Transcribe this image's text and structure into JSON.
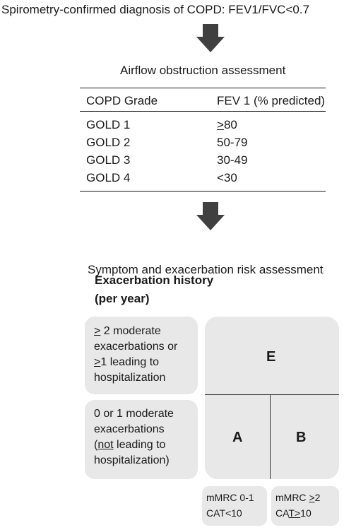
{
  "header": {
    "diagnosis": "Spirometry-confirmed diagnosis of COPD: FEV1/FVC<0.7"
  },
  "airflow": {
    "title": "Airflow obstruction assessment",
    "col_grade": "COPD Grade",
    "col_fev": "FEV 1 (% predicted)",
    "rows": [
      {
        "grade": "GOLD 1",
        "fev_prefix": ">",
        "fev": "80"
      },
      {
        "grade": "GOLD 2",
        "fev_prefix": "",
        "fev": "50-79"
      },
      {
        "grade": "GOLD 3",
        "fev_prefix": "",
        "fev": "30-49"
      },
      {
        "grade": "GOLD 4",
        "fev_prefix": "",
        "fev": "<30"
      }
    ]
  },
  "risk": {
    "title": "Symptom and exacerbation risk assessment",
    "history_title_1": "Exacerbation history",
    "history_title_2": "(per year)",
    "high": {
      "line1_prefix": ">",
      "line1_rest": " 2 moderate",
      "line2": "exacerbations or",
      "line3_prefix": ">",
      "line3_rest": "1 leading to",
      "line4": "hospitalization"
    },
    "low": {
      "line1": "0 or 1 moderate",
      "line2": "exacerbations",
      "line3_open": "(",
      "line3_not": "not",
      "line3_rest": " leading to",
      "line4": "hospitalization)"
    },
    "groups": {
      "e": "E",
      "a": "A",
      "b": "B"
    },
    "symptoms_low": {
      "mmrc": "mMRC 0-1",
      "cat": "CAT<10"
    },
    "symptoms_high": {
      "mmrc_prefix": "mMRC ",
      "mmrc_ge": ">",
      "mmrc_val": "2",
      "cat_prefix": "CA",
      "cat_t": "T",
      "cat_ge": ">",
      "cat_val": "10"
    }
  }
}
